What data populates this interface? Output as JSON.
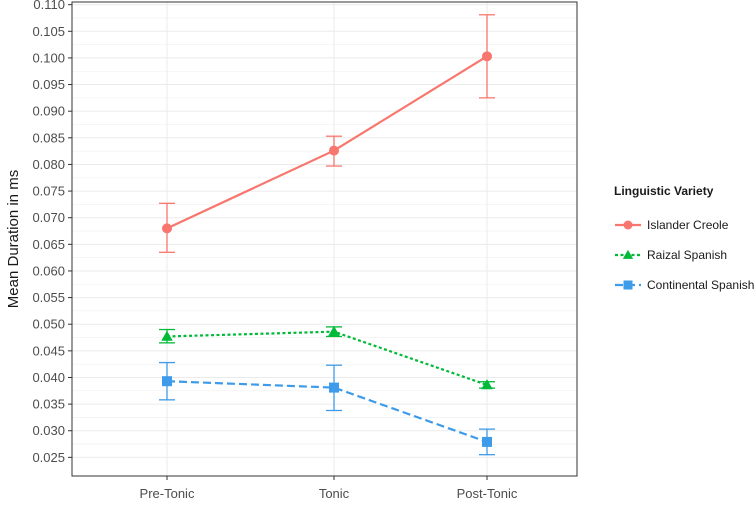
{
  "chart_data": {
    "type": "line",
    "title": "",
    "xlabel": "",
    "ylabel": "Mean Duration in ms",
    "categories": [
      "Pre-Tonic",
      "Tonic",
      "Post-Tonic"
    ],
    "ylim": [
      0.0215,
      0.1105
    ],
    "yticks": [
      "0.025",
      "0.030",
      "0.035",
      "0.040",
      "0.045",
      "0.050",
      "0.055",
      "0.060",
      "0.065",
      "0.070",
      "0.075",
      "0.080",
      "0.085",
      "0.090",
      "0.095",
      "0.100",
      "0.105",
      "0.110"
    ],
    "grid": true,
    "legend": {
      "title": "Linguistic Variety",
      "position": "right"
    },
    "series": [
      {
        "name": "Islander Creole",
        "color": "#F8766D",
        "marker": "circle",
        "linestyle": "solid",
        "values": [
          0.068,
          0.0826,
          0.1003
        ],
        "error_low": [
          0.0635,
          0.0797,
          0.0925
        ],
        "error_high": [
          0.0727,
          0.0853,
          0.1081
        ]
      },
      {
        "name": "Raizal Spanish",
        "color": "#00BA38",
        "marker": "triangle",
        "linestyle": "dotted",
        "values": [
          0.0477,
          0.0486,
          0.0386
        ],
        "error_low": [
          0.0465,
          0.0477,
          0.038
        ],
        "error_high": [
          0.049,
          0.0495,
          0.0392
        ]
      },
      {
        "name": "Continental Spanish",
        "color": "#3D9BE9",
        "marker": "square",
        "linestyle": "dashed",
        "values": [
          0.0393,
          0.0381,
          0.0279
        ],
        "error_low": [
          0.0358,
          0.0338,
          0.0255
        ],
        "error_high": [
          0.0428,
          0.0423,
          0.0303
        ]
      }
    ]
  }
}
